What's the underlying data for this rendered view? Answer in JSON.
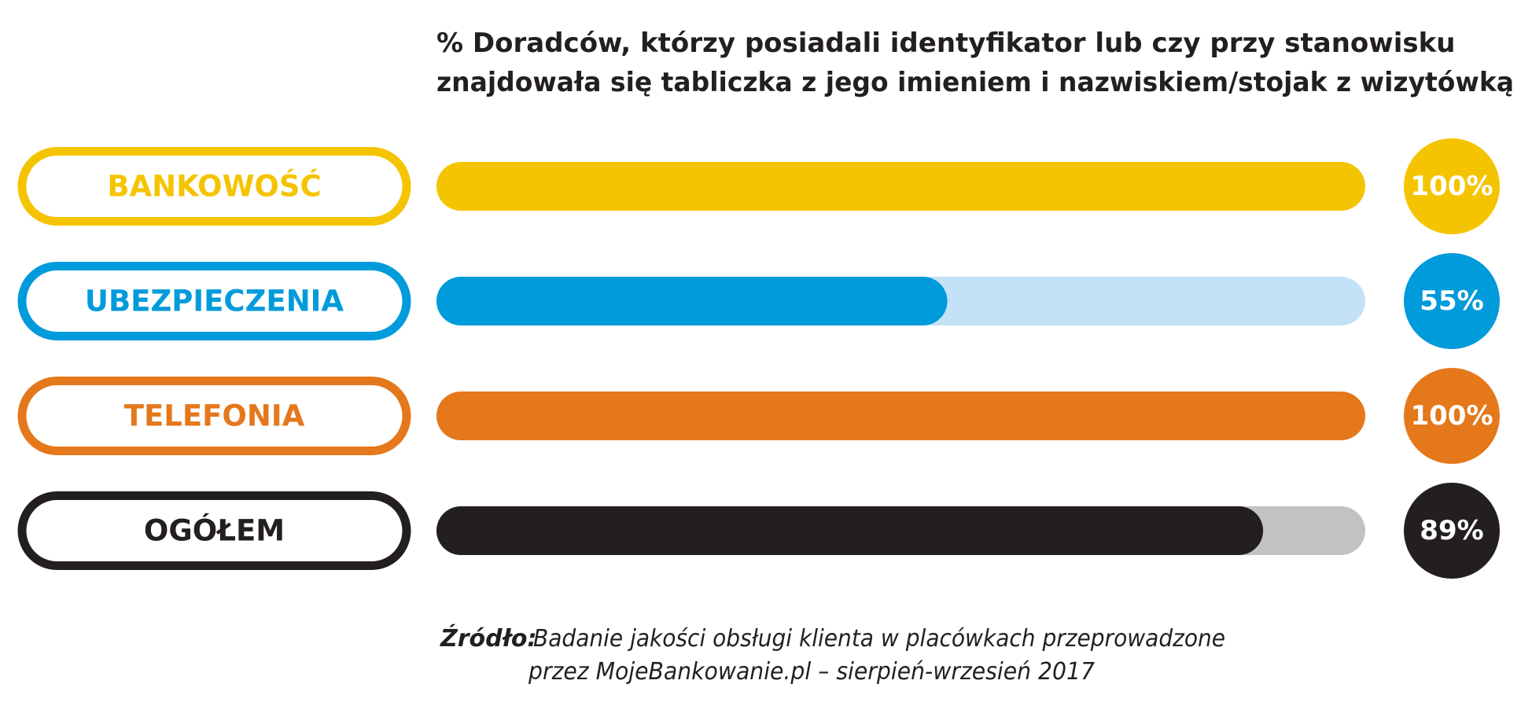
{
  "chart_data": {
    "type": "bar",
    "orientation": "horizontal",
    "title_lines": [
      "% Doradców, którzy posiadali identyfikator lub czy przy stanowisku",
      "znajdowała się tabliczka z jego imieniem i nazwiskiem/stojak z wizytówką"
    ],
    "categories": [
      "BANKOWOŚĆ",
      "UBEZPIECZENIA",
      "TELEFONIA",
      "OGÓŁEM"
    ],
    "values": [
      100,
      55,
      100,
      89
    ],
    "value_labels": [
      "100%",
      "55%",
      "100%",
      "89%"
    ],
    "xlim": [
      0,
      100
    ],
    "grid": false,
    "colors": [
      "#f5c400",
      "#009bdb",
      "#e4781b",
      "#231f20"
    ],
    "track_colors": [
      "#fbe9a8",
      "#c3e1f7",
      "#f6d2b1",
      "#c2c2c2"
    ]
  },
  "source": {
    "label": "Źródło:",
    "line1": "Badanie jakości obsługi klienta w placówkach przeprowadzone",
    "line2": "przez MojeBankowanie.pl – sierpień-wrzesień 2017"
  }
}
